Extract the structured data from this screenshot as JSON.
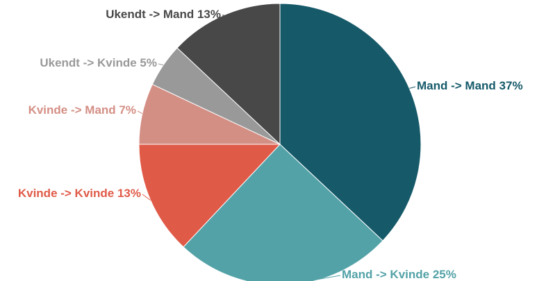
{
  "chart_data": {
    "type": "pie",
    "categories": [
      "Mand -> Mand",
      "Mand -> Kvinde",
      "Kvinde -> Kvinde",
      "Kvinde -> Mand",
      "Ukendt -> Kvinde",
      "Ukendt -> Mand"
    ],
    "values": [
      37,
      25,
      13,
      7,
      5,
      13
    ],
    "value_labels": [
      "37%",
      "25%",
      "13%",
      "7%",
      "5%",
      "13%"
    ],
    "colors": [
      "#165a6a",
      "#52a2a7",
      "#e05a48",
      "#d48f85",
      "#999999",
      "#484848"
    ]
  }
}
